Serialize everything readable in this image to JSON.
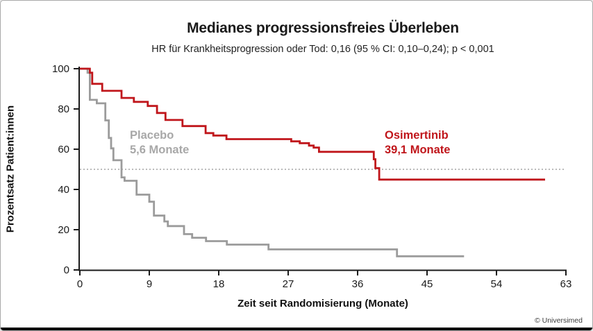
{
  "chart_data": {
    "type": "line",
    "subtype": "kaplan_meier_step",
    "title": "Medianes progressionsfreies Überleben",
    "subtitle": "HR für Krankheitsprogression oder Tod: 0,16 (95 % CI: 0,10–0,24); p < 0,001",
    "xlabel": "Zeit seit Randomisierung (Monate)",
    "ylabel": "Prozentsatz Patient:innen",
    "xlim": [
      0,
      63
    ],
    "ylim": [
      0,
      100
    ],
    "x_ticks": [
      0,
      9,
      18,
      27,
      36,
      45,
      54,
      63
    ],
    "y_ticks": [
      0,
      20,
      40,
      60,
      80,
      100
    ],
    "grid": false,
    "reference_line_pct": 50,
    "series": [
      {
        "name": "Osimertinib",
        "median_label": "39,1 Monate",
        "color": "#c0161b",
        "label_color": "#c0161b",
        "points_month_pct": [
          [
            0,
            100
          ],
          [
            1.3,
            100
          ],
          [
            1.3,
            98
          ],
          [
            1.6,
            98
          ],
          [
            1.6,
            92.5
          ],
          [
            2.9,
            92.5
          ],
          [
            2.9,
            89
          ],
          [
            5.4,
            89
          ],
          [
            5.4,
            85.5
          ],
          [
            7,
            85.5
          ],
          [
            7,
            83.5
          ],
          [
            8.8,
            83.5
          ],
          [
            8.8,
            81.5
          ],
          [
            10,
            81.5
          ],
          [
            10,
            78
          ],
          [
            11.1,
            78
          ],
          [
            11.1,
            74.5
          ],
          [
            13.3,
            74.5
          ],
          [
            13.3,
            71.5
          ],
          [
            16.3,
            71.5
          ],
          [
            16.3,
            68
          ],
          [
            17.3,
            68
          ],
          [
            17.3,
            66.8
          ],
          [
            19,
            66.8
          ],
          [
            19,
            65
          ],
          [
            27.4,
            65
          ],
          [
            27.4,
            63.9
          ],
          [
            28.5,
            63.9
          ],
          [
            28.5,
            63
          ],
          [
            29.7,
            63
          ],
          [
            29.7,
            61.8
          ],
          [
            30.3,
            61.8
          ],
          [
            30.3,
            60.8
          ],
          [
            31,
            60.8
          ],
          [
            31,
            58.7
          ],
          [
            38.1,
            58.7
          ],
          [
            38.1,
            55
          ],
          [
            38.3,
            55
          ],
          [
            38.3,
            50.6
          ],
          [
            38.8,
            50.6
          ],
          [
            38.8,
            44.9
          ],
          [
            60.3,
            44.9
          ]
        ]
      },
      {
        "name": "Placebo",
        "median_label": "5,6 Monate",
        "color": "#9b9b9b",
        "label_color": "#a8a8a8",
        "points_month_pct": [
          [
            0,
            100
          ],
          [
            1.0,
            100
          ],
          [
            1.0,
            98
          ],
          [
            1.3,
            98
          ],
          [
            1.3,
            84.5
          ],
          [
            2.2,
            84.5
          ],
          [
            2.2,
            82.8
          ],
          [
            3.3,
            82.8
          ],
          [
            3.3,
            74.3
          ],
          [
            3.75,
            74.3
          ],
          [
            3.75,
            65.6
          ],
          [
            4.05,
            65.6
          ],
          [
            4.05,
            60.4
          ],
          [
            4.35,
            60.4
          ],
          [
            4.35,
            54.5
          ],
          [
            5.4,
            54.5
          ],
          [
            5.4,
            46
          ],
          [
            5.8,
            46
          ],
          [
            5.8,
            44.3
          ],
          [
            7.35,
            44.3
          ],
          [
            7.35,
            37.4
          ],
          [
            9,
            37.4
          ],
          [
            9,
            33.9
          ],
          [
            9.6,
            33.9
          ],
          [
            9.6,
            27
          ],
          [
            10.95,
            27
          ],
          [
            10.95,
            24.1
          ],
          [
            11.4,
            24.1
          ],
          [
            11.4,
            21.8
          ],
          [
            13.5,
            21.8
          ],
          [
            13.5,
            17.8
          ],
          [
            14.55,
            17.8
          ],
          [
            14.55,
            16
          ],
          [
            16.35,
            16
          ],
          [
            16.35,
            14.3
          ],
          [
            19.05,
            14.3
          ],
          [
            19.05,
            12.6
          ],
          [
            24.45,
            12.6
          ],
          [
            24.45,
            10.2
          ],
          [
            41.1,
            10.2
          ],
          [
            41.1,
            6.8
          ],
          [
            49.8,
            6.8
          ]
        ]
      }
    ]
  },
  "footer": {
    "credit": "© Universimed"
  },
  "colors": {
    "axis": "#1a1a1a",
    "tick_text": "#1a1a1a",
    "reference_line": "#909090",
    "background": "#ffffff",
    "frame_border": "#a9a9a9",
    "bottom_bar": "#000000"
  }
}
